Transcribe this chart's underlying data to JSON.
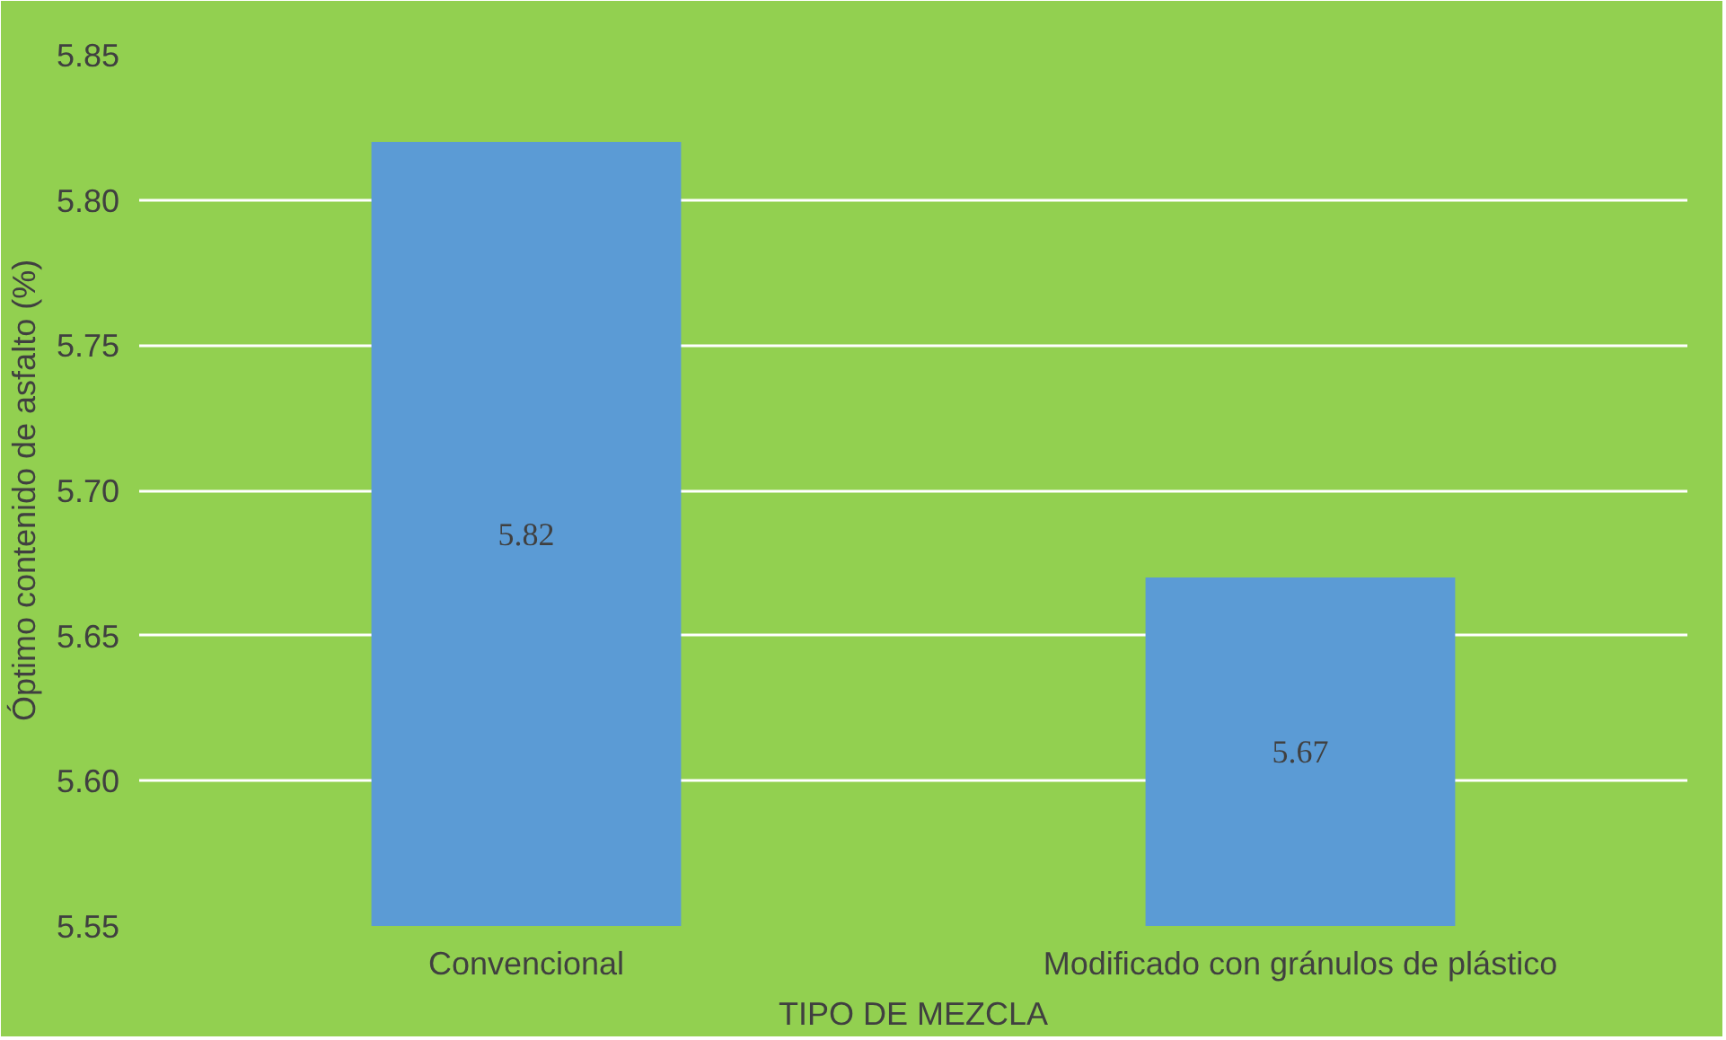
{
  "chart_data": {
    "type": "bar",
    "xlabel": "TIPO DE MEZCLA",
    "ylabel": "Óptimo contenido de asfalto (%)",
    "categories": [
      "Convencional",
      "Modificado con gránulos de plástico"
    ],
    "values": [
      5.82,
      5.67
    ],
    "color": "#5b9bd5",
    "ylim": [
      5.55,
      5.85
    ],
    "yticks": [
      5.55,
      {
        "value": 5.6,
        "label": "5.60"
      },
      5.65,
      {
        "value": 5.7,
        "label": "5.70"
      },
      5.75,
      {
        "value": 5.8,
        "label": "5.80"
      },
      5.85
    ],
    "grid": "y",
    "data_labels": true
  }
}
